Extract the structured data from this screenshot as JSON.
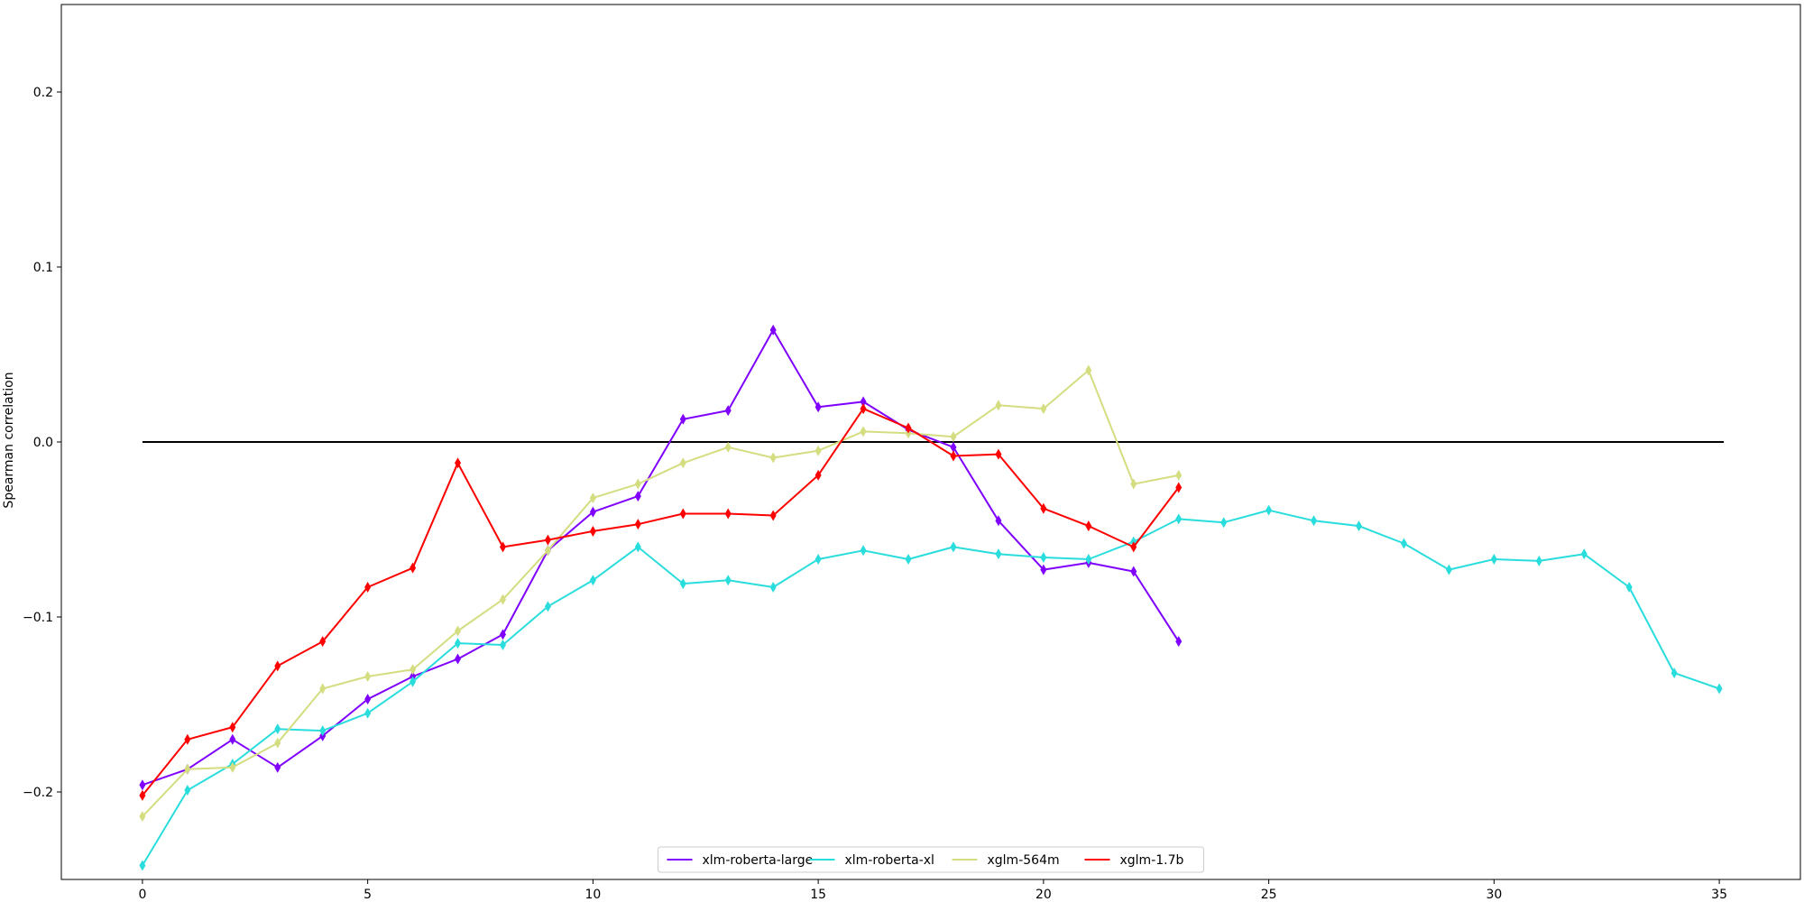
{
  "chart_data": {
    "type": "line",
    "title": "",
    "xlabel": "",
    "ylabel": "Spearman correlation",
    "xlim": [
      -1.8,
      36.8
    ],
    "ylim": [
      -0.25,
      0.25
    ],
    "xticks": [
      0,
      5,
      10,
      15,
      20,
      25,
      30,
      35
    ],
    "yticks": [
      -0.2,
      -0.1,
      0.0,
      0.1,
      0.2
    ],
    "grid": false,
    "legend_position": "bottom-center",
    "reference_line": {
      "y": 0.0,
      "x_range": [
        0,
        35.1
      ],
      "color": "#000000"
    },
    "series": [
      {
        "name": "xlm-roberta-large",
        "color": "#7f00ff",
        "marker": "thin_diamond",
        "x": [
          0,
          1,
          2,
          3,
          4,
          5,
          6,
          7,
          8,
          9,
          10,
          11,
          12,
          13,
          14,
          15,
          16,
          17,
          18,
          19,
          20,
          21,
          22,
          23
        ],
        "y": [
          -0.196,
          -0.187,
          -0.17,
          -0.186,
          -0.168,
          -0.147,
          -0.134,
          -0.124,
          -0.11,
          -0.062,
          -0.04,
          -0.031,
          0.013,
          0.018,
          0.064,
          0.02,
          0.023,
          0.007,
          -0.003,
          -0.045,
          -0.073,
          -0.069,
          -0.074,
          -0.114
        ]
      },
      {
        "name": "xlm-roberta-xl",
        "color": "#2adddd",
        "marker": "thin_diamond",
        "x": [
          0,
          1,
          2,
          3,
          4,
          5,
          6,
          7,
          8,
          9,
          10,
          11,
          12,
          13,
          14,
          15,
          16,
          17,
          18,
          19,
          20,
          21,
          22,
          23,
          24,
          25,
          26,
          27,
          28,
          29,
          30,
          31,
          32,
          33,
          34,
          35
        ],
        "y": [
          -0.242,
          -0.199,
          -0.184,
          -0.164,
          -0.165,
          -0.155,
          -0.137,
          -0.115,
          -0.116,
          -0.094,
          -0.079,
          -0.06,
          -0.081,
          -0.079,
          -0.083,
          -0.067,
          -0.062,
          -0.067,
          -0.06,
          -0.064,
          -0.066,
          -0.067,
          -0.057,
          -0.044,
          -0.046,
          -0.039,
          -0.045,
          -0.048,
          -0.058,
          -0.073,
          -0.067,
          -0.068,
          -0.064,
          -0.083,
          -0.132,
          -0.141
        ]
      },
      {
        "name": "xglm-564m",
        "color": "#d4dd80",
        "marker": "thin_diamond",
        "x": [
          0,
          1,
          2,
          3,
          4,
          5,
          6,
          7,
          8,
          9,
          10,
          11,
          12,
          13,
          14,
          15,
          16,
          17,
          18,
          19,
          20,
          21,
          22,
          23
        ],
        "y": [
          -0.214,
          -0.187,
          -0.186,
          -0.172,
          -0.141,
          -0.134,
          -0.13,
          -0.108,
          -0.09,
          -0.062,
          -0.032,
          -0.024,
          -0.012,
          -0.003,
          -0.009,
          -0.005,
          0.006,
          0.005,
          0.003,
          0.021,
          0.019,
          0.041,
          -0.024,
          -0.019
        ]
      },
      {
        "name": "xglm-1.7b",
        "color": "#ff0000",
        "marker": "thin_diamond",
        "x": [
          0,
          1,
          2,
          3,
          4,
          5,
          6,
          7,
          8,
          9,
          10,
          11,
          12,
          13,
          14,
          15,
          16,
          17,
          18,
          19,
          20,
          21,
          22,
          23
        ],
        "y": [
          -0.202,
          -0.17,
          -0.163,
          -0.128,
          -0.114,
          -0.083,
          -0.072,
          -0.012,
          -0.06,
          -0.056,
          -0.051,
          -0.047,
          -0.041,
          -0.041,
          -0.042,
          -0.019,
          0.019,
          0.008,
          -0.008,
          -0.007,
          -0.038,
          -0.048,
          -0.06,
          -0.026
        ]
      }
    ]
  }
}
